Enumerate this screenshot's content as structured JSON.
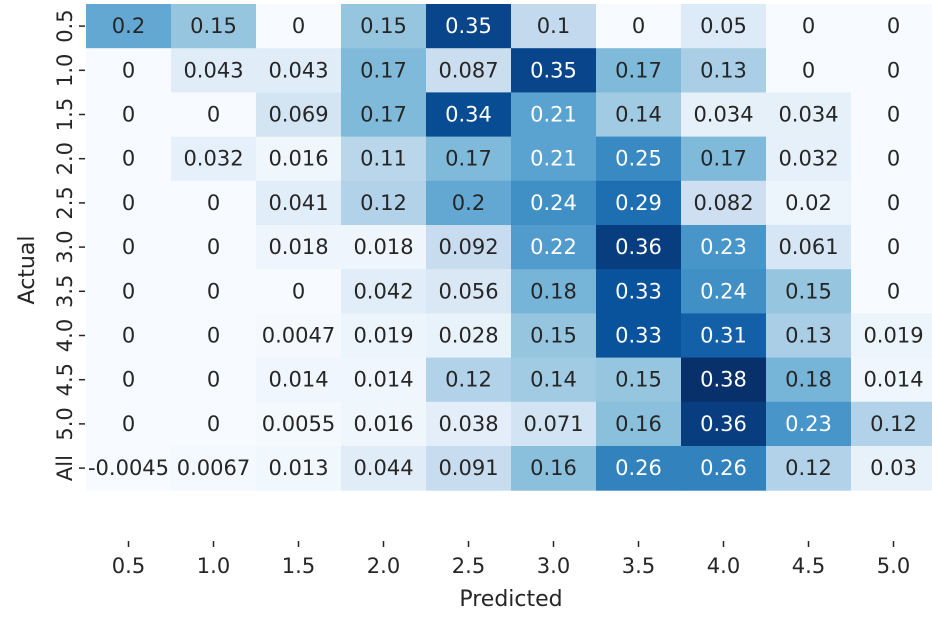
{
  "chart_data": {
    "type": "heatmap",
    "xlabel": "Predicted",
    "ylabel": "Actual",
    "x_categories": [
      "0.5",
      "1.0",
      "1.5",
      "2.0",
      "2.5",
      "3.0",
      "3.5",
      "4.0",
      "4.5",
      "5.0"
    ],
    "y_categories": [
      "0.5",
      "1.0",
      "1.5",
      "2.0",
      "2.5",
      "3.0",
      "3.5",
      "4.0",
      "4.5",
      "5.0",
      "All"
    ],
    "values": [
      [
        0.2,
        0.15,
        0,
        0.15,
        0.35,
        0.1,
        0,
        0.05,
        0,
        0
      ],
      [
        0,
        0.043,
        0.043,
        0.17,
        0.087,
        0.35,
        0.17,
        0.13,
        0,
        0
      ],
      [
        0,
        0,
        0.069,
        0.17,
        0.34,
        0.21,
        0.14,
        0.034,
        0.034,
        0
      ],
      [
        0,
        0.032,
        0.016,
        0.11,
        0.17,
        0.21,
        0.25,
        0.17,
        0.032,
        0
      ],
      [
        0,
        0,
        0.041,
        0.12,
        0.2,
        0.24,
        0.29,
        0.082,
        0.02,
        0
      ],
      [
        0,
        0,
        0.018,
        0.018,
        0.092,
        0.22,
        0.36,
        0.23,
        0.061,
        0
      ],
      [
        0,
        0,
        0,
        0.042,
        0.056,
        0.18,
        0.33,
        0.24,
        0.15,
        0
      ],
      [
        0,
        0,
        0.0047,
        0.019,
        0.028,
        0.15,
        0.33,
        0.31,
        0.13,
        0.019
      ],
      [
        0,
        0,
        0.014,
        0.014,
        0.12,
        0.14,
        0.15,
        0.38,
        0.18,
        0.014
      ],
      [
        0,
        0,
        0.0055,
        0.016,
        0.038,
        0.071,
        0.16,
        0.36,
        0.23,
        0.12
      ],
      [
        -0.0045,
        0.0067,
        0.013,
        0.044,
        0.091,
        0.16,
        0.26,
        0.26,
        0.12,
        0.03
      ]
    ],
    "value_labels": [
      [
        "0.2",
        "0.15",
        "0",
        "0.15",
        "0.35",
        "0.1",
        "0",
        "0.05",
        "0",
        "0"
      ],
      [
        "0",
        "0.043",
        "0.043",
        "0.17",
        "0.087",
        "0.35",
        "0.17",
        "0.13",
        "0",
        "0"
      ],
      [
        "0",
        "0",
        "0.069",
        "0.17",
        "0.34",
        "0.21",
        "0.14",
        "0.034",
        "0.034",
        "0"
      ],
      [
        "0",
        "0.032",
        "0.016",
        "0.11",
        "0.17",
        "0.21",
        "0.25",
        "0.17",
        "0.032",
        "0"
      ],
      [
        "0",
        "0",
        "0.041",
        "0.12",
        "0.2",
        "0.24",
        "0.29",
        "0.082",
        "0.02",
        "0"
      ],
      [
        "0",
        "0",
        "0.018",
        "0.018",
        "0.092",
        "0.22",
        "0.36",
        "0.23",
        "0.061",
        "0"
      ],
      [
        "0",
        "0",
        "0",
        "0.042",
        "0.056",
        "0.18",
        "0.33",
        "0.24",
        "0.15",
        "0"
      ],
      [
        "0",
        "0",
        "0.0047",
        "0.019",
        "0.028",
        "0.15",
        "0.33",
        "0.31",
        "0.13",
        "0.019"
      ],
      [
        "0",
        "0",
        "0.014",
        "0.014",
        "0.12",
        "0.14",
        "0.15",
        "0.38",
        "0.18",
        "0.014"
      ],
      [
        "0",
        "0",
        "0.0055",
        "0.016",
        "0.038",
        "0.071",
        "0.16",
        "0.36",
        "0.23",
        "0.12"
      ],
      [
        "-0.0045",
        "0.0067",
        "0.013",
        "0.044",
        "0.091",
        "0.16",
        "0.26",
        "0.26",
        "0.12",
        "0.03"
      ]
    ],
    "colormap": "Blues",
    "color_range": [
      0,
      0.38
    ],
    "colorbar": false,
    "grid": false
  }
}
